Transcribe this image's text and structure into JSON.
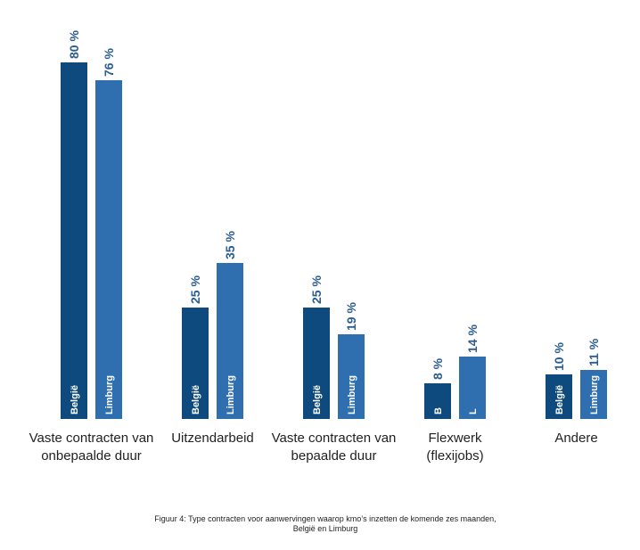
{
  "colors": {
    "belgie": "#0e4a7e",
    "limburg": "#2f6fb0",
    "value_text": "#2b5d91"
  },
  "chart_data": {
    "type": "bar",
    "categories": [
      [
        "Vaste contracten van",
        "onbepaalde duur"
      ],
      [
        "Uitzendarbeid"
      ],
      [
        "Vaste contracten van",
        "bepaalde duur"
      ],
      [
        "Flexwerk",
        "(flexijobs)"
      ],
      [
        "Andere"
      ]
    ],
    "series": [
      {
        "values": [
          80,
          25,
          25,
          8,
          10
        ],
        "value_labels": [
          "80 %",
          "25 %",
          "25 %",
          "8 %",
          "10 %"
        ],
        "bar_labels": [
          "België",
          "België",
          "België",
          "B",
          "België"
        ]
      },
      {
        "values": [
          76,
          35,
          19,
          14,
          11
        ],
        "value_labels": [
          "76 %",
          "35 %",
          "19 %",
          "14 %",
          "11 %"
        ],
        "bar_labels": [
          "Limburg",
          "Limburg",
          "Limburg",
          "L",
          "Limburg"
        ]
      }
    ],
    "ylim": [
      0,
      80
    ]
  },
  "caption": "Figuur 4: Type contracten voor aanwervingen waarop kmo’s inzetten de komende zes maanden, België en Limburg"
}
